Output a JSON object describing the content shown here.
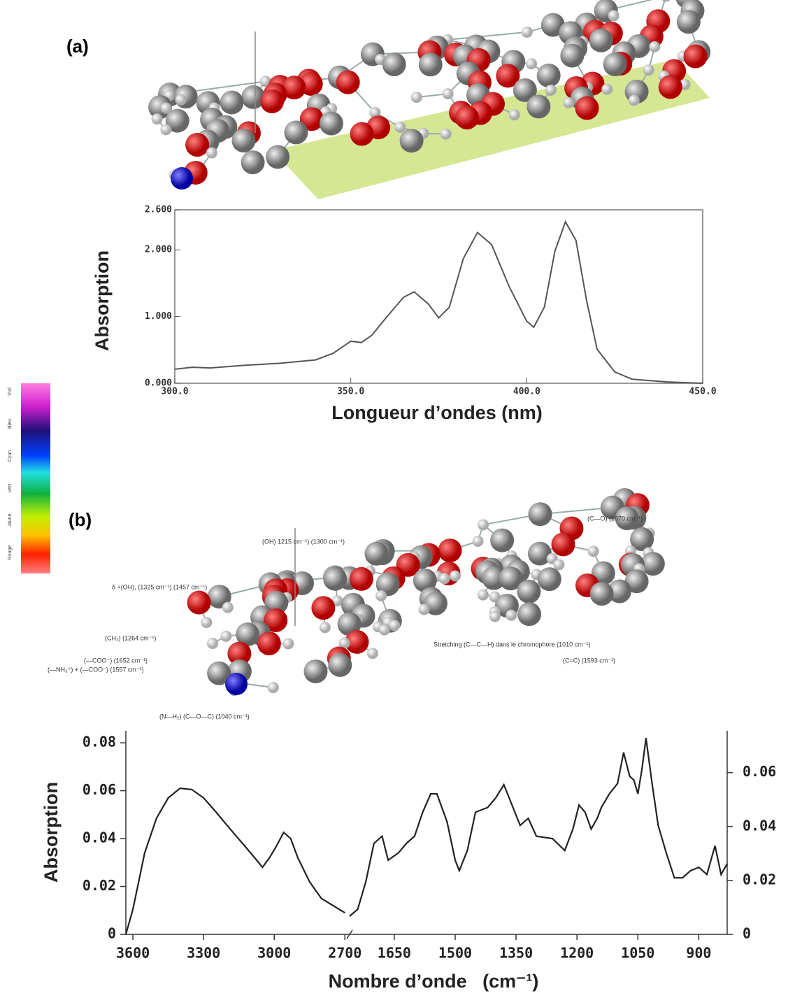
{
  "chart_data": [
    {
      "type": "line",
      "panel_label": "(a)",
      "ylabel": "Absorption",
      "xlabel": "Longueur d’ondes (nm)",
      "color": "#555555",
      "x": [
        300,
        305,
        310,
        320,
        330,
        340,
        345,
        350,
        353,
        356,
        360,
        365,
        368,
        372,
        375,
        378,
        382,
        386,
        390,
        395,
        400,
        402,
        405,
        408,
        411,
        414,
        417,
        420,
        425,
        430,
        440,
        450
      ],
      "values": [
        0.21,
        0.24,
        0.23,
        0.27,
        0.3,
        0.35,
        0.45,
        0.63,
        0.61,
        0.72,
        0.98,
        1.29,
        1.37,
        1.19,
        0.98,
        1.14,
        1.87,
        2.26,
        2.08,
        1.45,
        0.93,
        0.84,
        1.14,
        1.98,
        2.42,
        2.14,
        1.24,
        0.51,
        0.17,
        0.06,
        0.02,
        0
      ],
      "xlim": [
        300,
        450
      ],
      "ylim": [
        0,
        2.6
      ],
      "xticks": [
        {
          "value": 300,
          "label": "300.0"
        },
        {
          "value": 350,
          "label": "350.0"
        },
        {
          "value": 400,
          "label": "400.0"
        },
        {
          "value": 450,
          "label": "450.0"
        }
      ],
      "yticks": [
        {
          "value": 0,
          "label": "0.000"
        },
        {
          "value": 1,
          "label": "1.000"
        },
        {
          "value": 2,
          "label": "2.000"
        },
        {
          "value": 2.6,
          "label": "2.600"
        }
      ],
      "grid": false
    },
    {
      "type": "line",
      "panel_label": "(b)",
      "ylabel": "Absorption",
      "xlabel": "Nombre d’onde   (cm⁻¹)",
      "color": "#222222",
      "x": [
        3630,
        3600,
        3550,
        3500,
        3450,
        3400,
        3350,
        3300,
        3250,
        3200,
        3100,
        3050,
        3020,
        2990,
        2960,
        2930,
        2900,
        2850,
        2800,
        2750,
        2700,
        1760,
        1740,
        1720,
        1700,
        1680,
        1665,
        1640,
        1620,
        1600,
        1580,
        1560,
        1545,
        1520,
        1500,
        1490,
        1470,
        1450,
        1420,
        1400,
        1380,
        1360,
        1340,
        1320,
        1300,
        1260,
        1230,
        1210,
        1195,
        1180,
        1165,
        1150,
        1140,
        1120,
        1100,
        1085,
        1070,
        1060,
        1050,
        1040,
        1030,
        1015,
        1000,
        980,
        960,
        940,
        920,
        900,
        880,
        860,
        845,
        830
      ],
      "values": [
        0,
        0.0105,
        0.034,
        0.0485,
        0.057,
        0.061,
        0.0605,
        0.057,
        0.0514,
        0.0455,
        0.034,
        0.028,
        0.032,
        0.037,
        0.0426,
        0.04,
        0.032,
        0.022,
        0.015,
        0.012,
        0.009,
        0.0076,
        0.0105,
        0.022,
        0.038,
        0.041,
        0.031,
        0.034,
        0.038,
        0.041,
        0.051,
        0.0587,
        0.0587,
        0.047,
        0.031,
        0.0266,
        0.035,
        0.051,
        0.053,
        0.057,
        0.0625,
        0.054,
        0.0455,
        0.0485,
        0.041,
        0.04,
        0.035,
        0.044,
        0.054,
        0.051,
        0.044,
        0.0485,
        0.053,
        0.0587,
        0.063,
        0.076,
        0.066,
        0.0645,
        0.0587,
        0.069,
        0.082,
        0.063,
        0.0455,
        0.034,
        0.0236,
        0.0236,
        0.0266,
        0.028,
        0.025,
        0.037,
        0.025,
        0.0295
      ],
      "xlim": [
        3630,
        830
      ],
      "xbreak": [
        2680,
        1760
      ],
      "ylim": [
        0,
        0.085
      ],
      "y2lim": [
        0,
        0.0755
      ],
      "xticks": [
        3600,
        3300,
        3000,
        2700,
        1650,
        1500,
        1350,
        1200,
        1050,
        900
      ],
      "yticks": [
        0,
        0.02,
        0.04,
        0.06,
        0.08
      ],
      "y2ticks": [
        0,
        0.02,
        0.04,
        0.06
      ],
      "grid": false,
      "annotations": [
        "(C—O) (1070 cm⁻¹)",
        "(OH) 1215 cm⁻¹) (1300 cm⁻¹)",
        "δ +(OH), (1325 cm⁻¹) (1457 cm⁻¹)",
        "(CH₃) (1264 cm⁻¹)",
        "(—COO⁻) (1652 cm⁻¹)",
        "(—NH₃⁺) + (—COO⁻) (1557 cm⁻¹)",
        "(N—H₂) (C—O—C) (1040 cm⁻¹)",
        "Stretching (C—C—H) dans le chromophore (1010 cm⁻¹)",
        "(C=C) (1593 cm⁻¹)"
      ]
    }
  ],
  "colorbar": {
    "labels": [
      "Viol",
      "Bleu",
      "Cyan",
      "Vert",
      "Jaune",
      "Rouge"
    ]
  }
}
